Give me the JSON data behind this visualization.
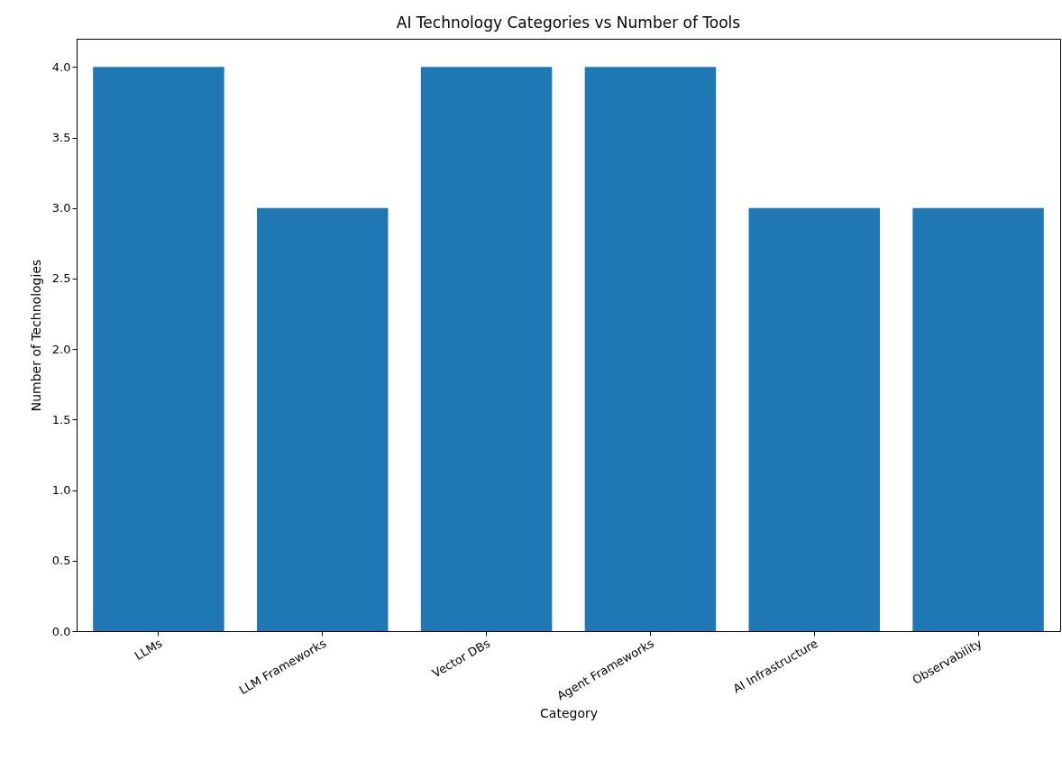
{
  "chart_data": {
    "type": "bar",
    "title": "AI Technology Categories vs Number of Tools",
    "xlabel": "Category",
    "ylabel": "Number of Technologies",
    "categories": [
      "LLMs",
      "LLM Frameworks",
      "Vector DBs",
      "Agent Frameworks",
      "AI Infrastructure",
      "Observability"
    ],
    "values": [
      4,
      3,
      4,
      4,
      3,
      3
    ],
    "color": "#1f77b4",
    "ylim": [
      0,
      4.2
    ],
    "yticks": [
      {
        "value": 0,
        "label": "0.0"
      },
      {
        "value": 0.5,
        "label": "0.5"
      },
      {
        "value": 1,
        "label": "1.0"
      },
      {
        "value": 1.5,
        "label": "1.5"
      },
      {
        "value": 2,
        "label": "2.0"
      },
      {
        "value": 2.5,
        "label": "2.5"
      },
      {
        "value": 3,
        "label": "3.0"
      },
      {
        "value": 3.5,
        "label": "3.5"
      },
      {
        "value": 4,
        "label": "4.0"
      }
    ],
    "grid": false
  }
}
